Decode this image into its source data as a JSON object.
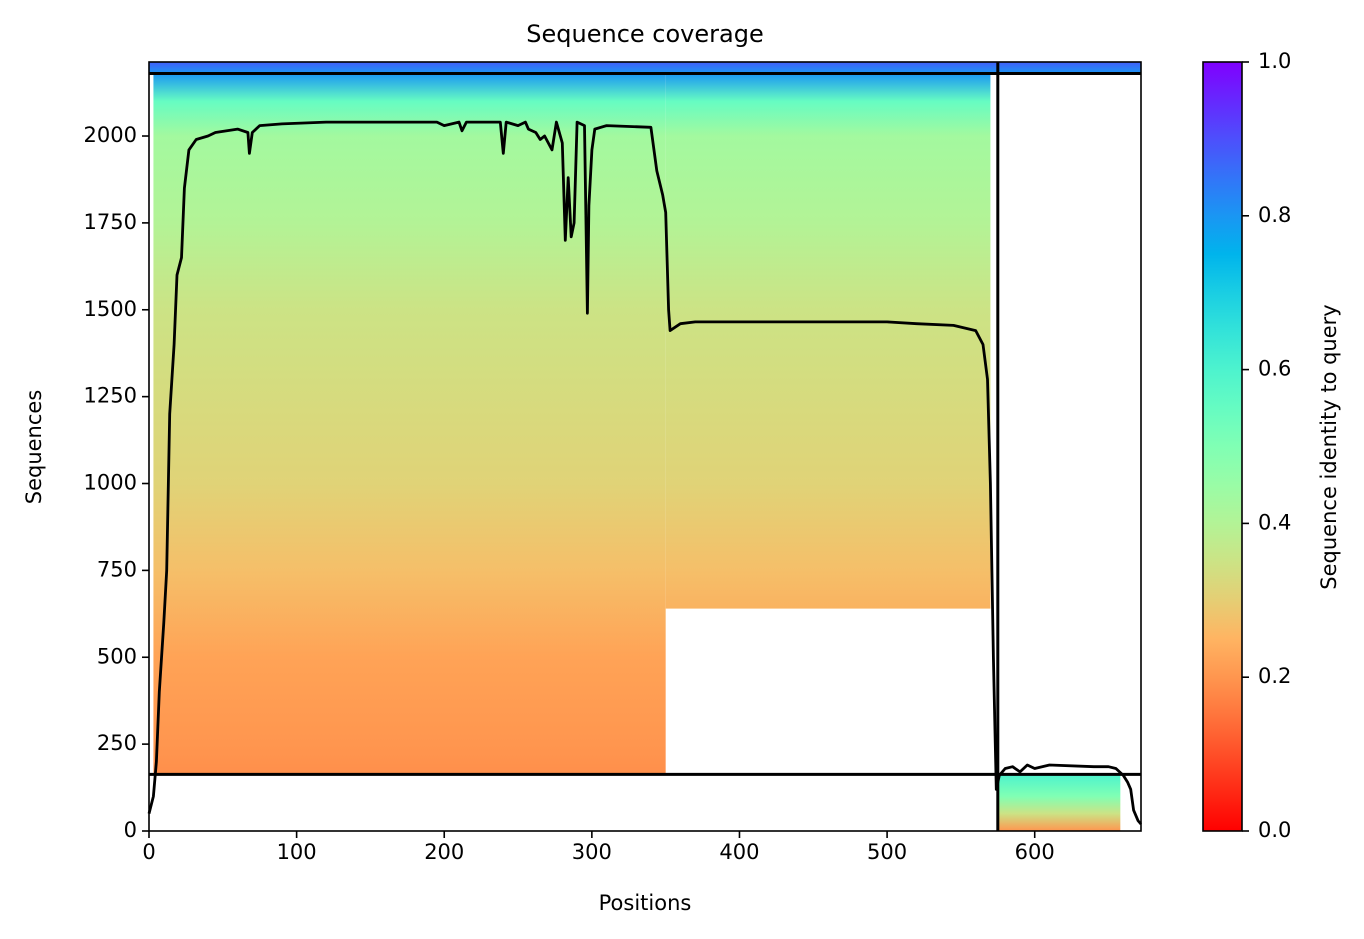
{
  "chart_data": {
    "type": "coverage",
    "title": "Sequence coverage",
    "x_label": "Positions",
    "y_label": "Sequences",
    "colorbar_label": "Sequence identity to query",
    "xlim": [
      0,
      672
    ],
    "ylim": [
      0,
      2213
    ],
    "xticks": [
      0,
      100,
      200,
      300,
      400,
      500,
      600
    ],
    "yticks": [
      0,
      250,
      500,
      750,
      1000,
      1250,
      1500,
      1750,
      2000
    ],
    "clim": [
      0,
      1
    ],
    "cticks": [
      {
        "value": 0,
        "label": "0.0"
      },
      0.2,
      0.4,
      0.6,
      0.8,
      {
        "value": 1,
        "label": "1.0"
      }
    ],
    "colormap": "rainbow_r",
    "blocks": [
      [
        0,
        672,
        2180,
        2213
      ],
      [
        3,
        350,
        163,
        2180
      ],
      [
        350,
        570,
        640,
        2180
      ]
    ],
    "identity_profile": {
      "rows": [
        163,
        250,
        500,
        750,
        1000,
        1500,
        1750,
        2000,
        2100,
        2180,
        2213
      ],
      "identity": [
        0.19,
        0.2,
        0.22,
        0.27,
        0.31,
        0.35,
        0.4,
        0.43,
        0.55,
        0.8,
        0.88
      ]
    },
    "lower_blocks": [
      [
        575,
        658,
        0,
        163
      ]
    ],
    "lower_identity_profile": {
      "rows": [
        0,
        50,
        100,
        163
      ],
      "identity": [
        0.2,
        0.35,
        0.5,
        0.6
      ]
    },
    "hlines": [
      163,
      2180
    ],
    "vlines": [
      575
    ],
    "line_color": "#000000",
    "x": [
      0,
      3,
      5,
      7,
      10,
      12,
      14,
      17,
      19,
      22,
      24,
      27,
      32,
      40,
      45,
      60,
      67,
      68,
      70,
      75,
      90,
      120,
      170,
      195,
      200,
      210,
      212,
      215,
      238,
      240,
      242,
      250,
      255,
      257,
      262,
      265,
      268,
      273,
      276,
      280,
      282,
      284,
      286,
      288,
      290,
      295,
      297,
      298,
      300,
      302,
      310,
      340,
      344,
      348,
      350,
      352,
      353,
      360,
      370,
      500,
      520,
      545,
      560,
      565,
      568,
      570,
      572,
      573,
      574,
      576,
      580,
      585,
      590,
      595,
      600,
      610,
      640,
      650,
      655,
      660,
      663,
      665,
      667,
      670,
      672
    ],
    "values": [
      50,
      100,
      200,
      400,
      600,
      750,
      1200,
      1400,
      1600,
      1650,
      1850,
      1960,
      1990,
      2000,
      2010,
      2020,
      2010,
      1950,
      2010,
      2030,
      2035,
      2040,
      2040,
      2040,
      2030,
      2040,
      2015,
      2040,
      2040,
      1950,
      2040,
      2030,
      2040,
      2020,
      2010,
      1990,
      2000,
      1960,
      2040,
      1980,
      1700,
      1880,
      1710,
      1750,
      2040,
      2030,
      1490,
      1800,
      1960,
      2020,
      2030,
      2025,
      1900,
      1830,
      1780,
      1500,
      1440,
      1460,
      1465,
      1465,
      1460,
      1455,
      1440,
      1400,
      1300,
      1000,
      500,
      300,
      120,
      160,
      180,
      185,
      170,
      190,
      180,
      190,
      185,
      185,
      180,
      160,
      140,
      120,
      60,
      30,
      20
    ]
  }
}
